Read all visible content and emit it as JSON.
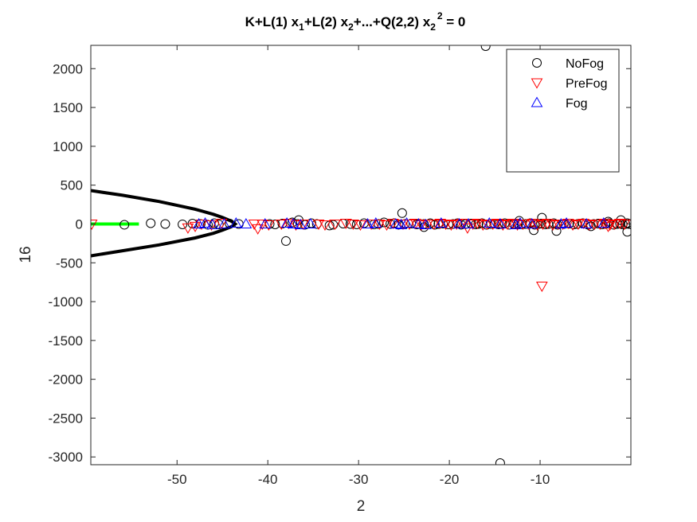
{
  "chart_data": {
    "type": "scatter",
    "title_parts": {
      "a": "K+L(1) x",
      "a_sub": "1",
      "b": "+L(2) x",
      "b_sub": "2",
      "c": "+...+Q(2,2) x",
      "c_sub": "2",
      "c_sup": "2",
      "d": " = 0"
    },
    "xlabel": "2",
    "ylabel": "16",
    "xlim": [
      -59.5,
      0
    ],
    "ylim": [
      -3100,
      2300
    ],
    "xticks": [
      -50,
      -40,
      -30,
      -20,
      -10
    ],
    "yticks": [
      2000,
      1500,
      1000,
      500,
      0,
      -500,
      -1000,
      -1500,
      -2000,
      -2500,
      -3000
    ],
    "grid": false,
    "legend_position": "top-right",
    "legend": [
      "NoFog",
      "PreFog",
      "Fog"
    ],
    "colors": {
      "NoFog": "#000000",
      "PreFog": "#ff0000",
      "Fog": "#0000ff",
      "boundary": "#000000",
      "segment": "#00ff00"
    },
    "series": [
      {
        "name": "NoFog",
        "marker": "circle",
        "x": [
          -55.8,
          -52.9,
          -51.3,
          -49.4,
          -48.3,
          -47.4,
          -46.6,
          -45.9,
          -45.4,
          -44.2,
          -43.2,
          -39.8,
          -39.2,
          -38.4,
          -37.3,
          -36.7,
          -35.9,
          -35.2,
          -34.6,
          -33.2,
          -32.8,
          -31.7,
          -30.9,
          -30.2,
          -29.4,
          -28.3,
          -27.8,
          -27.2,
          -26.5,
          -26.1,
          -25.6,
          -24.9,
          -24.2,
          -23.6,
          -22.8,
          -22.1,
          -21.6,
          -21.2,
          -20.7,
          -20.1,
          -19.6,
          -19.1,
          -18.7,
          -18.2,
          -17.6,
          -17.1,
          -16.8,
          -16.4,
          -15.9,
          -15.4,
          -15.0,
          -14.6,
          -14.2,
          -13.9,
          -13.4,
          -12.9,
          -12.4,
          -12.0,
          -11.6,
          -11.1,
          -10.6,
          -10.2,
          -9.9,
          -9.4,
          -9.1,
          -8.5,
          -8.1,
          -7.4,
          -6.8,
          -6.3,
          -5.9,
          -5.3,
          -4.7,
          -4.1,
          -3.6,
          -3.2,
          -2.8,
          -2.4,
          -1.9,
          -1.5,
          -1.2,
          -0.9,
          -0.6,
          -0.4,
          -0.2,
          -38.0,
          -36.6,
          -25.2,
          -16.0,
          -14.4,
          -9.8,
          -10.7,
          -8.2,
          -0.4,
          -1.1,
          -2.5,
          -4.4,
          -12.3,
          -22.8
        ],
        "y": [
          -10,
          10,
          0,
          -5,
          5,
          0,
          -10,
          10,
          -5,
          5,
          0,
          0,
          -5,
          5,
          20,
          0,
          -10,
          10,
          0,
          -20,
          -10,
          5,
          0,
          -5,
          10,
          -5,
          0,
          20,
          0,
          10,
          -10,
          0,
          5,
          -5,
          0,
          10,
          -10,
          0,
          5,
          -5,
          0,
          10,
          -10,
          0,
          5,
          -5,
          0,
          10,
          -10,
          0,
          5,
          -5,
          0,
          10,
          -10,
          0,
          5,
          -5,
          0,
          10,
          -10,
          0,
          5,
          -5,
          0,
          10,
          -10,
          0,
          5,
          -5,
          0,
          10,
          -10,
          0,
          5,
          -5,
          0,
          10,
          -10,
          0,
          5,
          -5,
          0,
          10,
          0,
          -220,
          50,
          140,
          2290,
          -3080,
          80,
          -80,
          -90,
          -100,
          50,
          30,
          -30,
          40,
          -40
        ]
      },
      {
        "name": "PreFog",
        "marker": "triangle-down",
        "x": [
          -59.4,
          -48.8,
          -48.0,
          -47.3,
          -46.2,
          -45.1,
          -41.5,
          -41.1,
          -40.6,
          -39.9,
          -38.5,
          -37.7,
          -36.9,
          -36.1,
          -34.4,
          -33.7,
          -32.6,
          -31.4,
          -30.6,
          -29.8,
          -28.6,
          -27.7,
          -26.9,
          -26.2,
          -25.1,
          -24.4,
          -23.7,
          -23.1,
          -22.4,
          -21.7,
          -21.0,
          -20.4,
          -19.8,
          -19.2,
          -18.6,
          -18.0,
          -17.4,
          -16.9,
          -16.3,
          -15.8,
          -15.2,
          -14.7,
          -14.1,
          -13.6,
          -13.0,
          -12.5,
          -11.9,
          -11.3,
          -10.8,
          -10.3,
          -9.7,
          -9.2,
          -8.6,
          -8.0,
          -7.5,
          -6.9,
          -6.4,
          -5.8,
          -5.2,
          -4.6,
          -4.0,
          -3.4,
          -2.9,
          -2.3,
          -1.8,
          -1.2,
          -0.7,
          -9.8,
          -2.5
        ],
        "y": [
          0,
          -50,
          -30,
          0,
          -10,
          10,
          0,
          -60,
          0,
          -10,
          0,
          10,
          -10,
          0,
          0,
          -10,
          0,
          10,
          0,
          -10,
          0,
          0,
          -10,
          10,
          0,
          0,
          10,
          -10,
          0,
          0,
          10,
          0,
          -10,
          0,
          10,
          -50,
          0,
          10,
          -10,
          0,
          0,
          10,
          -10,
          0,
          10,
          -10,
          0,
          0,
          10,
          -10,
          0,
          10,
          -10,
          0,
          0,
          10,
          -10,
          0,
          10,
          -10,
          0,
          0,
          10,
          -10,
          0,
          10,
          0,
          -800,
          -30
        ]
      },
      {
        "name": "Fog",
        "marker": "triangle-up",
        "x": [
          -47.6,
          -46.9,
          -46.1,
          -44.8,
          -43.5,
          -42.4,
          -40.3,
          -37.9,
          -37.2,
          -36.4,
          -35.3,
          -29.0,
          -28.1,
          -25.9,
          -25.3,
          -24.7,
          -23.4,
          -22.6,
          -20.9,
          -18.9,
          -17.9,
          -15.6,
          -14.4,
          -12.7,
          -12.2,
          -10.9,
          -7.7,
          -7.1,
          -4.9,
          -3.0
        ],
        "y": [
          0,
          10,
          -10,
          0,
          10,
          0,
          0,
          10,
          0,
          -10,
          0,
          0,
          10,
          0,
          -10,
          10,
          0,
          -10,
          10,
          0,
          0,
          10,
          0,
          -10,
          10,
          0,
          0,
          10,
          0,
          10
        ]
      }
    ],
    "boundary_curve": {
      "name": "decision boundary",
      "x": [
        -59.5,
        -56.0,
        -52.0,
        -48.0,
        -46.0,
        -45.0,
        -44.0,
        -43.6,
        -44.0,
        -45.0,
        -46.0,
        -48.0,
        -52.0,
        -56.0,
        -59.5
      ],
      "y": [
        430,
        370,
        290,
        190,
        125,
        85,
        35,
        0,
        -35,
        -80,
        -120,
        -180,
        -270,
        -345,
        -410
      ]
    },
    "highlight_segment": {
      "x": [
        -59.5,
        -54.2
      ],
      "y": [
        0,
        0
      ]
    }
  }
}
